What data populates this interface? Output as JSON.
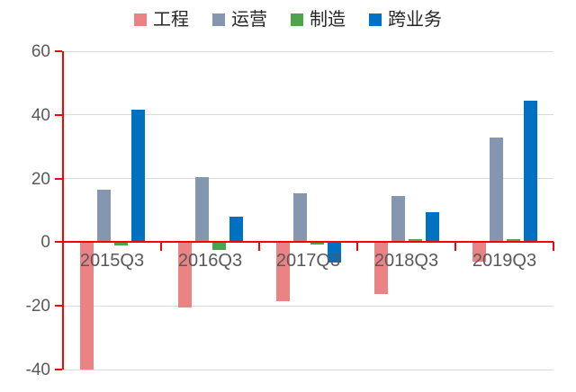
{
  "chart_data": {
    "type": "bar",
    "title": "",
    "xlabel": "",
    "ylabel": "",
    "categories": [
      "2015Q3",
      "2016Q3",
      "2017Q3",
      "2018Q3",
      "2019Q3"
    ],
    "series": [
      {
        "name": "工程",
        "color": "#EB8385",
        "values": [
          -40,
          -20.5,
          -18.5,
          -16.3,
          -6
        ]
      },
      {
        "name": "运营",
        "color": "#8496B0",
        "values": [
          16.5,
          20.5,
          15.5,
          14.6,
          33
        ]
      },
      {
        "name": "制造",
        "color": "#4EA34E",
        "values": [
          -1,
          -2.3,
          -0.8,
          0.9,
          1.1
        ]
      },
      {
        "name": "跨业务",
        "color": "#0070C0",
        "values": [
          41.5,
          8,
          -6.5,
          9.5,
          44.5
        ]
      }
    ],
    "ylim": [
      -40,
      60
    ],
    "ytick_step": 20,
    "ytick_labels": [
      "60",
      "40",
      "20",
      "0",
      "-20",
      "-40"
    ],
    "grid": true,
    "legend_position": "top",
    "axis_color": "#FF0000",
    "gridline_color": "#D9D9D9",
    "tick_label_color": "#595959"
  }
}
